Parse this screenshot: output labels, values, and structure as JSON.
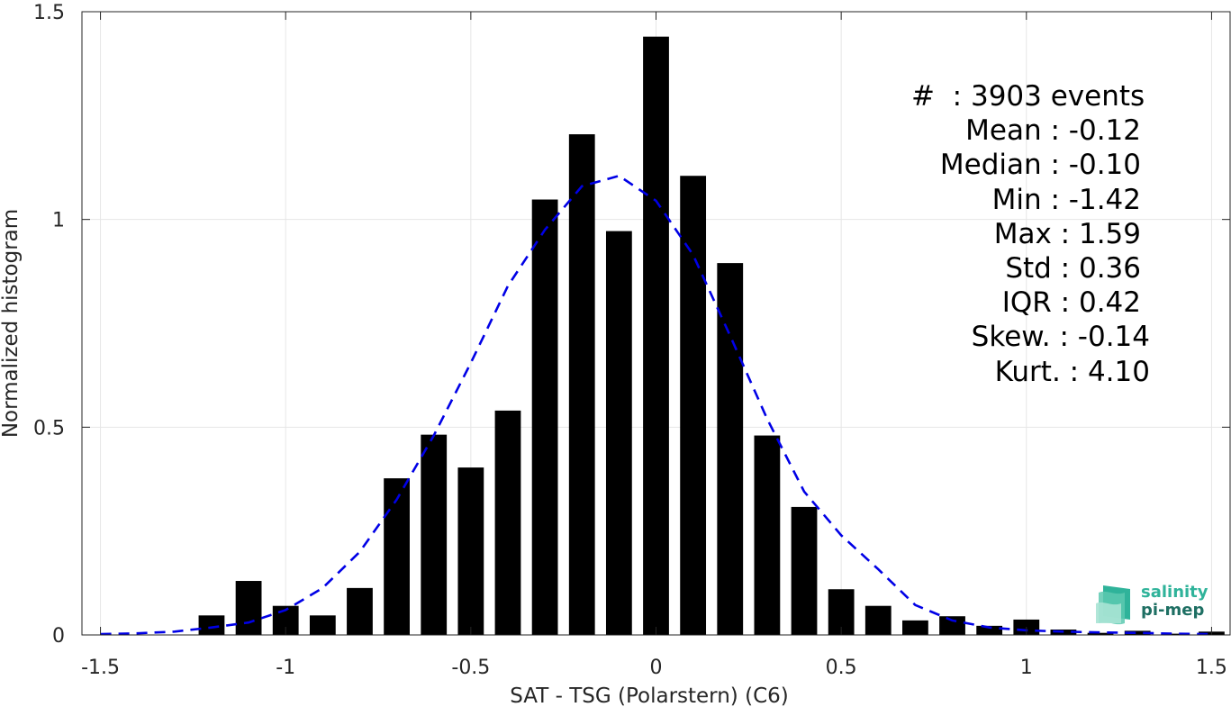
{
  "chart_data": {
    "type": "bar",
    "xlabel": "SAT - TSG (Polarstern) (C6)",
    "ylabel": "Normalized histogram",
    "xlim": [
      -1.55,
      1.55
    ],
    "ylim": [
      0,
      1.5
    ],
    "xticks": [
      -1.5,
      -1,
      -0.5,
      0,
      0.5,
      1,
      1.5
    ],
    "xtick_labels": [
      "-1.5",
      "-1",
      "-0.5",
      "0",
      "0.5",
      "1",
      "1.5"
    ],
    "yticks": [
      0,
      0.5,
      1,
      1.5
    ],
    "ytick_labels": [
      "0",
      "0.5",
      "1",
      "1.5"
    ],
    "grid": true,
    "bar_width": 0.07,
    "bars": {
      "x": [
        -1.5,
        -1.4,
        -1.3,
        -1.2,
        -1.1,
        -1.0,
        -0.9,
        -0.8,
        -0.7,
        -0.6,
        -0.5,
        -0.4,
        -0.3,
        -0.2,
        -0.1,
        0.0,
        0.1,
        0.2,
        0.3,
        0.4,
        0.5,
        0.6,
        0.7,
        0.8,
        0.9,
        1.0,
        1.1,
        1.2,
        1.3,
        1.4,
        1.5
      ],
      "values": [
        0,
        0,
        0,
        0.047,
        0.13,
        0.07,
        0.047,
        0.113,
        0.377,
        0.482,
        0.403,
        0.54,
        1.048,
        1.205,
        0.972,
        1.44,
        1.105,
        0.895,
        0.48,
        0.308,
        0.11,
        0.07,
        0.035,
        0.045,
        0.022,
        0.037,
        0.013,
        0.005,
        0.01,
        0.003,
        0.008
      ]
    },
    "fit_curve": {
      "style": "dashed",
      "color": "#0000e6",
      "x": [
        -1.5,
        -1.4,
        -1.3,
        -1.2,
        -1.1,
        -1.0,
        -0.9,
        -0.8,
        -0.7,
        -0.6,
        -0.5,
        -0.4,
        -0.3,
        -0.2,
        -0.1,
        0.0,
        0.1,
        0.2,
        0.3,
        0.4,
        0.5,
        0.6,
        0.7,
        0.8,
        0.9,
        1.0,
        1.1,
        1.2,
        1.3,
        1.4,
        1.5
      ],
      "y": [
        0.002,
        0.004,
        0.008,
        0.018,
        0.03,
        0.06,
        0.113,
        0.2,
        0.326,
        0.48,
        0.655,
        0.84,
        0.975,
        1.08,
        1.105,
        1.045,
        0.915,
        0.72,
        0.52,
        0.345,
        0.24,
        0.158,
        0.072,
        0.035,
        0.018,
        0.011,
        0.008,
        0.006,
        0.005,
        0.003,
        0.002
      ]
    }
  },
  "stats": {
    "events": "#  : 3903 events",
    "mean": "Mean : -0.12",
    "median": "Median : -0.10",
    "min": "Min : -1.42",
    "max": "Max : 1.59",
    "std": "Std : 0.36",
    "iqr": "IQR : 0.42",
    "skew": "Skew. : -0.14",
    "kurt": "Kurt. : 4.10"
  },
  "logo": {
    "line1": "salinity",
    "line2": "pi-mep"
  },
  "colors": {
    "bars": "#000000",
    "fit": "#0000e6",
    "grid": "#e6e6e6",
    "axis": "#262626",
    "logo_primary": "#2fb39a",
    "logo_secondary": "#1e6f63"
  }
}
